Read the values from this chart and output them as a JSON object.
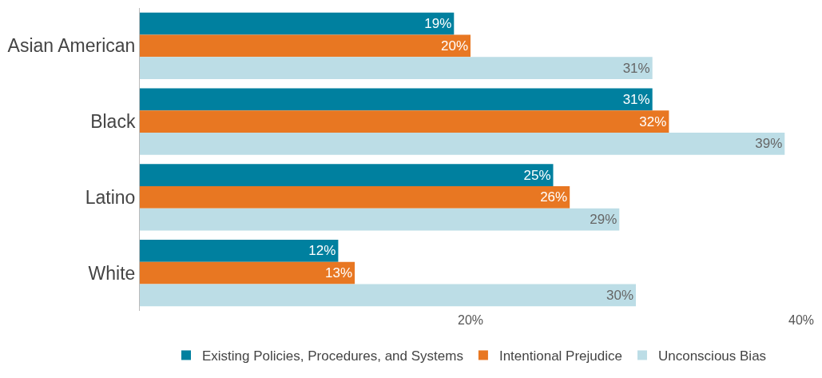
{
  "chart_data": {
    "type": "bar",
    "orientation": "horizontal",
    "categories": [
      "Asian American",
      "Black",
      "Latino",
      "White"
    ],
    "series": [
      {
        "name": "Existing Policies, Procedures, and Systems",
        "color": "#00809f",
        "values": [
          19,
          31,
          25,
          12
        ],
        "value_labels": [
          "19%",
          "31%",
          "25%",
          "12%"
        ]
      },
      {
        "name": "Intentional Prejudice",
        "color": "#e87722",
        "values": [
          20,
          32,
          26,
          13
        ],
        "value_labels": [
          "20%",
          "32%",
          "26%",
          "13%"
        ]
      },
      {
        "name": "Unconscious Bias",
        "color": "#bcdde6",
        "values": [
          31,
          39,
          29,
          30
        ],
        "value_labels": [
          "31%",
          "39%",
          "29%",
          "30%"
        ]
      }
    ],
    "xlim": [
      0,
      40
    ],
    "xticks": [
      {
        "value": 20,
        "label": "20%"
      },
      {
        "value": 40,
        "label": "40%"
      }
    ],
    "legend": "bottom"
  }
}
